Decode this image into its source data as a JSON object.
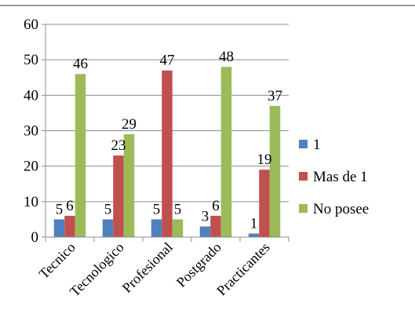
{
  "chart_data": {
    "type": "bar",
    "title": "",
    "xlabel": "",
    "ylabel": "",
    "categories": [
      "Tecnico",
      "Tecnologico",
      "Profesional",
      "Postgrado",
      "Practicantes"
    ],
    "series": [
      {
        "name": "1",
        "color": "#4f81bd",
        "values": [
          5,
          5,
          5,
          3,
          1
        ]
      },
      {
        "name": "Mas de 1",
        "color": "#c0504d",
        "values": [
          6,
          23,
          47,
          6,
          19
        ]
      },
      {
        "name": "No posee",
        "color": "#9bbb59",
        "values": [
          46,
          29,
          5,
          48,
          37
        ]
      }
    ],
    "ylim": [
      0,
      60
    ],
    "yticks": [
      0,
      10,
      20,
      30,
      40,
      50,
      60
    ],
    "grid": true,
    "legend": "right"
  }
}
